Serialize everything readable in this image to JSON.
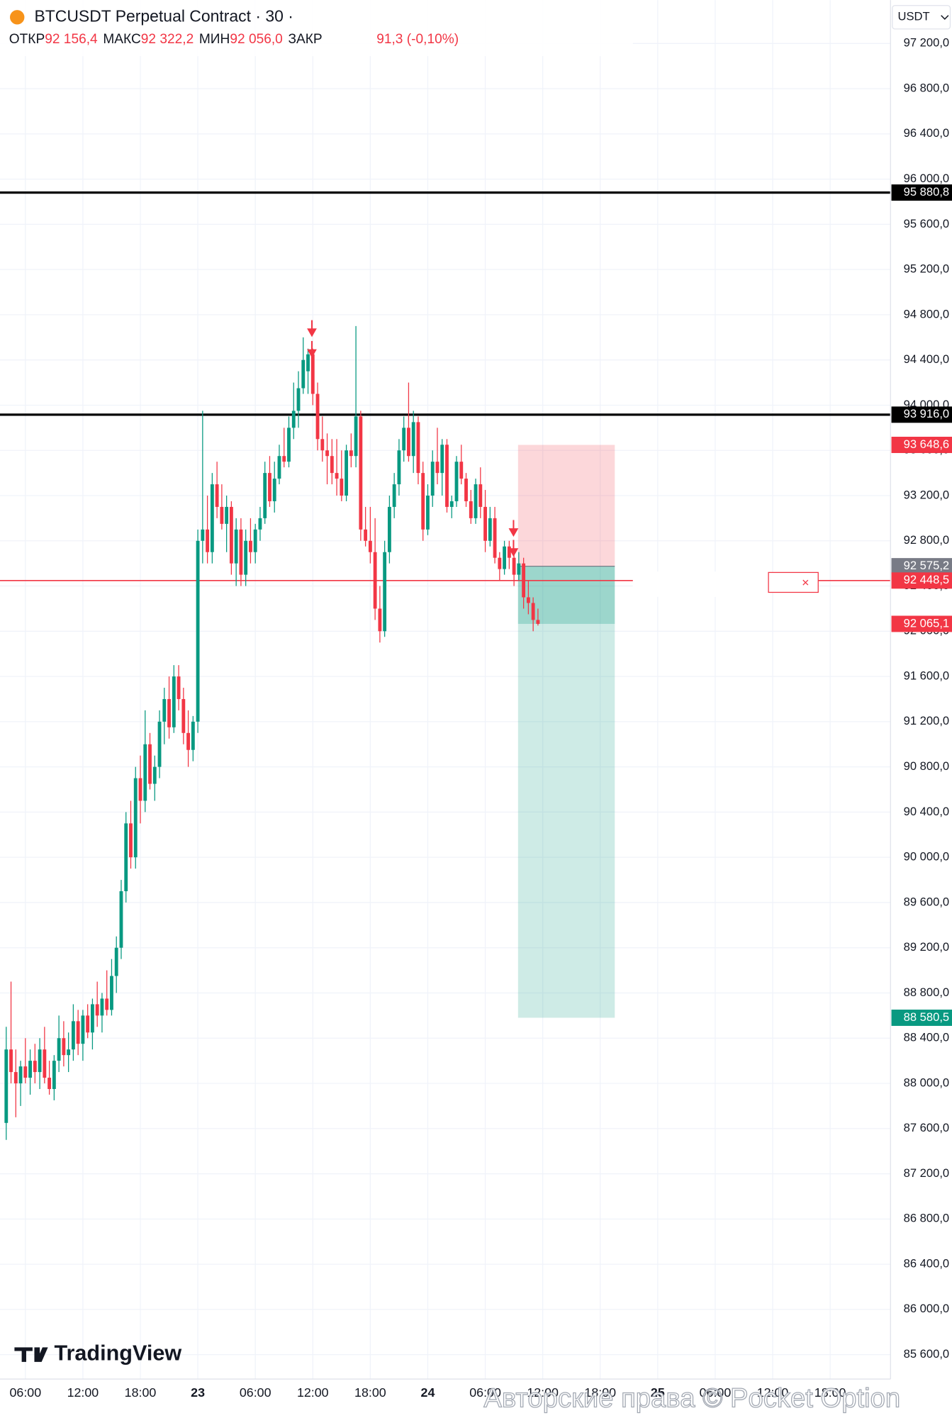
{
  "header": {
    "symbol": "BTCUSDT Perpetual Contract · 30 ·",
    "ohlc": [
      {
        "label": "ОТКР",
        "value": "92 156,4"
      },
      {
        "label": "МАКС",
        "value": "92 322,2"
      },
      {
        "label": "МИН",
        "value": "92 056,0"
      }
    ],
    "close_label": "ЗАКР",
    "change": "91,3 (-0,10%)",
    "currency": "USDT"
  },
  "logo": "TradingView",
  "watermark": "Авторские права © Pocket Option",
  "chart_data": {
    "type": "candlestick",
    "up_color": "#089981",
    "down_color": "#f23645",
    "grid": true,
    "xlim": [
      -1.3,
      184.6
    ],
    "ylim": [
      85384,
      97584
    ],
    "xticks": [
      {
        "value": 4,
        "label": "06:00"
      },
      {
        "value": 16,
        "label": "12:00"
      },
      {
        "value": 28,
        "label": "18:00"
      },
      {
        "value": 40,
        "label": "23"
      },
      {
        "value": 52,
        "label": "06:00"
      },
      {
        "value": 64,
        "label": "12:00"
      },
      {
        "value": 76,
        "label": "18:00"
      },
      {
        "value": 88,
        "label": "24"
      },
      {
        "value": 100,
        "label": "06:00"
      },
      {
        "value": 112,
        "label": "12:00"
      },
      {
        "value": 124,
        "label": "18:00"
      },
      {
        "value": 136,
        "label": "25"
      },
      {
        "value": 148,
        "label": "06:00"
      },
      {
        "value": 160,
        "label": "12:00"
      },
      {
        "value": 172,
        "label": "18:00"
      }
    ],
    "yticks": [
      {
        "value": 85600,
        "label": "85 600,0"
      },
      {
        "value": 86000,
        "label": "86 000,0"
      },
      {
        "value": 86400,
        "label": "86 400,0"
      },
      {
        "value": 86800,
        "label": "86 800,0"
      },
      {
        "value": 87200,
        "label": "87 200,0"
      },
      {
        "value": 87600,
        "label": "87 600,0"
      },
      {
        "value": 88000,
        "label": "88 000,0"
      },
      {
        "value": 88400,
        "label": "88 400,0"
      },
      {
        "value": 88800,
        "label": "88 800,0"
      },
      {
        "value": 89200,
        "label": "89 200,0"
      },
      {
        "value": 89600,
        "label": "89 600,0"
      },
      {
        "value": 90000,
        "label": "90 000,0"
      },
      {
        "value": 90400,
        "label": "90 400,0"
      },
      {
        "value": 90800,
        "label": "90 800,0"
      },
      {
        "value": 91200,
        "label": "91 200,0"
      },
      {
        "value": 91600,
        "label": "91 600,0"
      },
      {
        "value": 92000,
        "label": "92 000,0"
      },
      {
        "value": 92400,
        "label": "92 400,0"
      },
      {
        "value": 92800,
        "label": "92 800,0"
      },
      {
        "value": 93200,
        "label": "93 200,0"
      },
      {
        "value": 93600,
        "label": "93 600,0"
      },
      {
        "value": 94000,
        "label": "94 000,0"
      },
      {
        "value": 94400,
        "label": "94 400,0"
      },
      {
        "value": 94800,
        "label": "94 800,0"
      },
      {
        "value": 95200,
        "label": "95 200,0"
      },
      {
        "value": 95600,
        "label": "95 600,0"
      },
      {
        "value": 96000,
        "label": "96 000,0"
      },
      {
        "value": 96400,
        "label": "96 400,0"
      },
      {
        "value": 96800,
        "label": "96 800,0"
      },
      {
        "value": 97200,
        "label": "97 200,0"
      }
    ],
    "price_labels": [
      {
        "value": 95880.8,
        "label": "95 880,8",
        "color": "#000000",
        "line": true
      },
      {
        "value": 93916.0,
        "label": "93 916,0",
        "color": "#000000",
        "line": true
      },
      {
        "value": 93648.6,
        "label": "93 648,6",
        "color": "#f23645",
        "line": false
      },
      {
        "value": 92575.2,
        "label": "92 575,2",
        "color": "#787b86",
        "line": false
      },
      {
        "value": 92448.5,
        "label": "92 448,5",
        "color": "#f23645",
        "line": true
      },
      {
        "value": 92065.1,
        "label": "92 065,1",
        "color": "#f23645",
        "line": false
      },
      {
        "value": 88580.5,
        "label": "88 580,5",
        "color": "#089981",
        "line": false
      }
    ],
    "candles": [
      [
        87650,
        88500,
        87500,
        88300
      ],
      [
        88300,
        88900,
        88000,
        88100
      ],
      [
        88100,
        88300,
        87700,
        88000
      ],
      [
        88000,
        88200,
        87800,
        88150
      ],
      [
        88150,
        88400,
        88000,
        88050
      ],
      [
        88050,
        88300,
        87900,
        88200
      ],
      [
        88200,
        88350,
        88000,
        88100
      ],
      [
        88100,
        88400,
        87950,
        88300
      ],
      [
        88300,
        88500,
        88000,
        88050
      ],
      [
        88050,
        88200,
        87900,
        87950
      ],
      [
        87950,
        88250,
        87850,
        88200
      ],
      [
        88200,
        88600,
        88100,
        88400
      ],
      [
        88400,
        88550,
        88150,
        88250
      ],
      [
        88250,
        88450,
        88100,
        88300
      ],
      [
        88300,
        88700,
        88200,
        88550
      ],
      [
        88550,
        88650,
        88250,
        88350
      ],
      [
        88350,
        88650,
        88200,
        88600
      ],
      [
        88600,
        88700,
        88400,
        88450
      ],
      [
        88450,
        88750,
        88300,
        88700
      ],
      [
        88700,
        88900,
        88500,
        88600
      ],
      [
        88600,
        88800,
        88450,
        88750
      ],
      [
        88750,
        89000,
        88600,
        88650
      ],
      [
        88650,
        89100,
        88600,
        88950
      ],
      [
        88950,
        89300,
        88800,
        89200
      ],
      [
        89200,
        89800,
        89100,
        89700
      ],
      [
        89700,
        90400,
        89600,
        90300
      ],
      [
        90300,
        90500,
        89900,
        90000
      ],
      [
        90000,
        90800,
        89900,
        90700
      ],
      [
        90700,
        90900,
        90300,
        90500
      ],
      [
        90500,
        91300,
        90400,
        91000
      ],
      [
        91000,
        91100,
        90600,
        90650
      ],
      [
        90650,
        90900,
        90500,
        90800
      ],
      [
        90800,
        91300,
        90700,
        91200
      ],
      [
        91200,
        91500,
        91000,
        91400
      ],
      [
        91400,
        91600,
        91050,
        91150
      ],
      [
        91150,
        91700,
        91100,
        91600
      ],
      [
        91600,
        91700,
        91300,
        91400
      ],
      [
        91400,
        91500,
        91000,
        91100
      ],
      [
        91100,
        91300,
        90800,
        90950
      ],
      [
        90950,
        91250,
        90850,
        91200
      ],
      [
        91200,
        92900,
        91100,
        92800
      ],
      [
        92800,
        93950,
        92600,
        92900
      ],
      [
        92900,
        93200,
        92600,
        92700
      ],
      [
        92700,
        93400,
        92600,
        93300
      ],
      [
        93300,
        93500,
        93000,
        93100
      ],
      [
        93100,
        93300,
        92900,
        92950
      ],
      [
        92950,
        93200,
        92700,
        93100
      ],
      [
        93100,
        93150,
        92500,
        92600
      ],
      [
        92600,
        93000,
        92400,
        92900
      ],
      [
        92900,
        93000,
        92400,
        92500
      ],
      [
        92500,
        92900,
        92400,
        92800
      ],
      [
        92800,
        93000,
        92600,
        92700
      ],
      [
        92700,
        92950,
        92600,
        92900
      ],
      [
        92900,
        93100,
        92800,
        93000
      ],
      [
        93000,
        93500,
        92950,
        93400
      ],
      [
        93400,
        93550,
        93100,
        93150
      ],
      [
        93150,
        93500,
        93050,
        93350
      ],
      [
        93350,
        93650,
        93300,
        93550
      ],
      [
        93550,
        93800,
        93450,
        93500
      ],
      [
        93500,
        93900,
        93450,
        93800
      ],
      [
        93800,
        94200,
        93700,
        93950
      ],
      [
        93950,
        94300,
        93800,
        94150
      ],
      [
        94150,
        94600,
        94100,
        94400
      ],
      [
        94300,
        94500,
        94100,
        94450
      ],
      [
        94450,
        94500,
        94000,
        94100
      ],
      [
        94100,
        94200,
        93600,
        93700
      ],
      [
        93700,
        93900,
        93500,
        93600
      ],
      [
        93600,
        93750,
        93300,
        93550
      ],
      [
        93550,
        93700,
        93300,
        93400
      ],
      [
        93400,
        93700,
        93200,
        93350
      ],
      [
        93350,
        93600,
        93150,
        93200
      ],
      [
        93200,
        93650,
        93150,
        93600
      ],
      [
        93600,
        93750,
        93450,
        93550
      ],
      [
        93550,
        94700,
        93450,
        93900
      ],
      [
        93900,
        93950,
        92800,
        92900
      ],
      [
        92900,
        93100,
        92750,
        92800
      ],
      [
        92800,
        93100,
        92600,
        92700
      ],
      [
        92700,
        93000,
        92100,
        92200
      ],
      [
        92200,
        92400,
        91900,
        92000
      ],
      [
        92000,
        92800,
        91950,
        92700
      ],
      [
        92700,
        93200,
        92600,
        93100
      ],
      [
        93100,
        93400,
        93000,
        93300
      ],
      [
        93300,
        93700,
        93200,
        93600
      ],
      [
        93600,
        93900,
        93500,
        93800
      ],
      [
        93800,
        94200,
        93500,
        93550
      ],
      [
        93550,
        93950,
        93400,
        93850
      ],
      [
        93850,
        93900,
        93300,
        93400
      ],
      [
        93400,
        93500,
        92800,
        92900
      ],
      [
        92900,
        93300,
        92850,
        93200
      ],
      [
        93200,
        93600,
        93100,
        93500
      ],
      [
        93500,
        93800,
        93300,
        93400
      ],
      [
        93400,
        93700,
        93200,
        93650
      ],
      [
        93650,
        93700,
        93050,
        93100
      ],
      [
        93100,
        93200,
        93000,
        93150
      ],
      [
        93150,
        93550,
        93100,
        93500
      ],
      [
        93500,
        93650,
        93300,
        93350
      ],
      [
        93350,
        93400,
        93100,
        93150
      ],
      [
        93150,
        93250,
        92950,
        93000
      ],
      [
        93000,
        93350,
        92950,
        93300
      ],
      [
        93300,
        93450,
        93000,
        93100
      ],
      [
        93100,
        93250,
        92700,
        92800
      ],
      [
        92800,
        93100,
        92750,
        93000
      ],
      [
        93000,
        93100,
        92600,
        92650
      ],
      [
        92650,
        92700,
        92450,
        92550
      ],
      [
        92550,
        92800,
        92500,
        92750
      ],
      [
        92750,
        92800,
        92550,
        92650
      ],
      [
        92650,
        92700,
        92400,
        92500
      ],
      [
        92500,
        92700,
        92450,
        92600
      ],
      [
        92600,
        92650,
        92200,
        92300
      ],
      [
        92300,
        92450,
        92150,
        92250
      ],
      [
        92250,
        92300,
        92000,
        92100
      ],
      [
        92100,
        92200,
        92050,
        92065.1
      ]
    ]
  }
}
